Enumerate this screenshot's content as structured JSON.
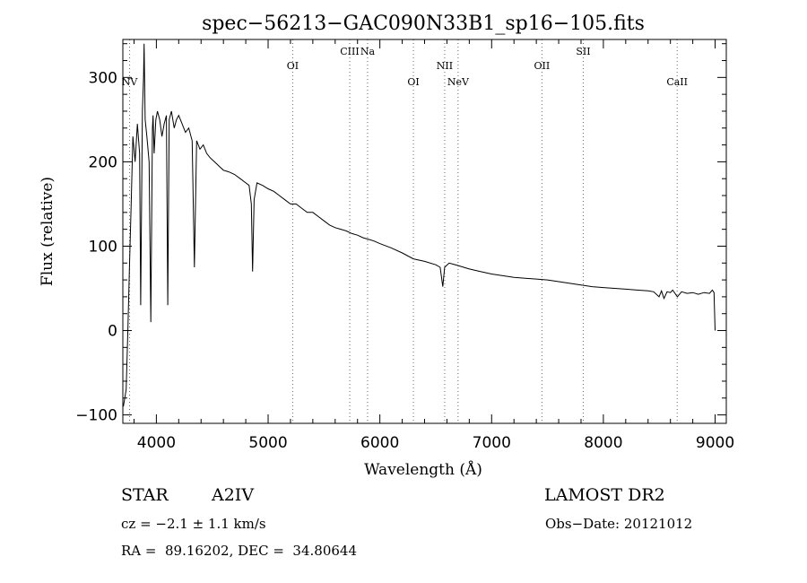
{
  "chart_data": {
    "type": "line",
    "title": "spec−56213−GAC090N33B1_sp16−105.fits",
    "xlabel": "Wavelength (Å)",
    "ylabel": "Flux (relative)",
    "xlim": [
      3700,
      9100
    ],
    "ylim": [
      -110,
      345
    ],
    "xticks": [
      4000,
      5000,
      6000,
      7000,
      8000,
      9000
    ],
    "yticks": [
      -100,
      0,
      100,
      200,
      300
    ],
    "ytick_labels": [
      "−100",
      "0",
      "100",
      "200",
      "300"
    ],
    "grid": false,
    "series": [
      {
        "x": [
          3705,
          3730,
          3745,
          3760,
          3775,
          3790,
          3810,
          3830,
          3850,
          3860,
          3875,
          3885,
          3890,
          3900,
          3915,
          3935,
          3950,
          3965,
          3970,
          3980,
          3995,
          4010,
          4030,
          4050,
          4070,
          4090,
          4102,
          4115,
          4135,
          4160,
          4180,
          4200,
          4230,
          4260,
          4290,
          4320,
          4340,
          4360,
          4390,
          4420,
          4450,
          4480,
          4520,
          4560,
          4600,
          4650,
          4700,
          4750,
          4800,
          4830,
          4850,
          4861,
          4875,
          4900,
          4950,
          5000,
          5050,
          5100,
          5150,
          5200,
          5250,
          5300,
          5350,
          5400,
          5450,
          5500,
          5550,
          5600,
          5650,
          5700,
          5750,
          5800,
          5850,
          5900,
          5950,
          6000,
          6100,
          6200,
          6300,
          6400,
          6500,
          6540,
          6563,
          6580,
          6620,
          6700,
          6800,
          6900,
          7000,
          7100,
          7200,
          7300,
          7400,
          7500,
          7600,
          7700,
          7800,
          7900,
          8000,
          8100,
          8200,
          8300,
          8400,
          8450,
          8498,
          8520,
          8542,
          8570,
          8600,
          8620,
          8662,
          8700,
          8750,
          8800,
          8850,
          8900,
          8950,
          8975,
          8990,
          9000
        ],
        "y": [
          -90,
          -70,
          0,
          80,
          150,
          230,
          200,
          245,
          210,
          30,
          260,
          300,
          340,
          250,
          230,
          200,
          10,
          240,
          255,
          210,
          250,
          260,
          250,
          230,
          245,
          255,
          30,
          250,
          260,
          240,
          250,
          255,
          245,
          235,
          240,
          225,
          75,
          225,
          215,
          220,
          210,
          205,
          200,
          195,
          190,
          188,
          185,
          180,
          175,
          172,
          150,
          70,
          155,
          175,
          172,
          168,
          165,
          160,
          155,
          150,
          150,
          145,
          140,
          140,
          135,
          130,
          125,
          122,
          120,
          118,
          115,
          113,
          110,
          108,
          106,
          103,
          98,
          92,
          85,
          82,
          78,
          75,
          52,
          75,
          80,
          77,
          73,
          70,
          67,
          65,
          63,
          62,
          61,
          60,
          58,
          56,
          54,
          52,
          51,
          50,
          49,
          48,
          47,
          46,
          40,
          47,
          38,
          46,
          45,
          48,
          40,
          46,
          44,
          45,
          43,
          45,
          44,
          48,
          45,
          0
        ]
      }
    ],
    "line_markers": [
      {
        "name": "NV",
        "x": 3760,
        "row": 1
      },
      {
        "name": "OI",
        "x": 5220,
        "row": 0
      },
      {
        "name": "CIII",
        "x": 5730,
        "row": 2
      },
      {
        "name": "Na",
        "x": 5890,
        "row": 2
      },
      {
        "name": "OI",
        "x": 6300,
        "row": 1
      },
      {
        "name": "NII",
        "x": 6580,
        "row": 0
      },
      {
        "name": "NeV",
        "x": 6700,
        "row": 1
      },
      {
        "name": "OII",
        "x": 7450,
        "row": 0
      },
      {
        "name": "SII",
        "x": 7820,
        "row": 2
      },
      {
        "name": "CaII",
        "x": 8660,
        "row": 1
      }
    ]
  },
  "footer": {
    "object_type": "STAR",
    "subclass": "A2IV",
    "survey": "LAMOST DR2",
    "cz": "cz = −2.1 ± 1.1 km/s",
    "obs_date": "Obs−Date: 20121012",
    "coords": "RA =  89.16202, DEC =  34.80644"
  }
}
